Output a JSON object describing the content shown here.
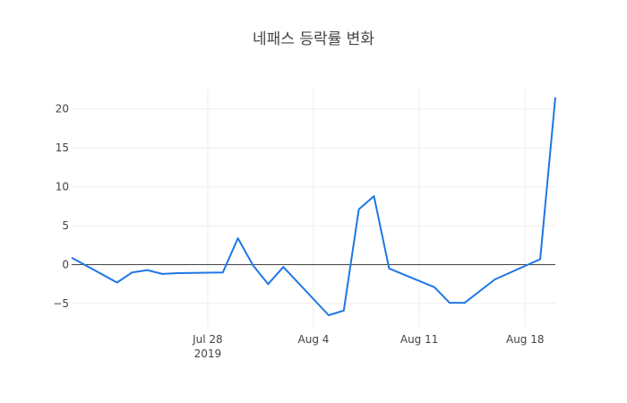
{
  "chart_data": {
    "type": "line",
    "title": "네패스 등락률 변화",
    "xlabel": "",
    "ylabel": "",
    "series_color": "#1f77e4",
    "grid": true,
    "x": [
      "2019-07-19",
      "2019-07-22",
      "2019-07-23",
      "2019-07-24",
      "2019-07-25",
      "2019-07-26",
      "2019-07-29",
      "2019-07-30",
      "2019-07-31",
      "2019-08-01",
      "2019-08-02",
      "2019-08-05",
      "2019-08-06",
      "2019-08-07",
      "2019-08-08",
      "2019-08-09",
      "2019-08-12",
      "2019-08-13",
      "2019-08-14",
      "2019-08-16",
      "2019-08-19",
      "2019-08-20"
    ],
    "values": [
      0.9,
      -2.3,
      -1.0,
      -0.7,
      -1.2,
      -1.1,
      -1.0,
      3.4,
      -0.1,
      -2.5,
      -0.3,
      -6.5,
      -5.9,
      7.1,
      8.8,
      -0.5,
      -2.9,
      -4.9,
      -4.9,
      -1.9,
      0.7,
      21.5
    ],
    "xlim": [
      "2019-07-19",
      "2019-08-20"
    ],
    "ylim": [
      -8,
      22.5
    ],
    "yticks": [
      -5,
      0,
      5,
      10,
      15,
      20
    ],
    "ytick_labels": [
      "−5",
      "0",
      "5",
      "10",
      "15",
      "20"
    ],
    "xticks": [
      {
        "date": "2019-07-28",
        "label": "Jul 28",
        "sublabel": "2019"
      },
      {
        "date": "2019-08-04",
        "label": "Aug 4",
        "sublabel": ""
      },
      {
        "date": "2019-08-11",
        "label": "Aug 11",
        "sublabel": ""
      },
      {
        "date": "2019-08-18",
        "label": "Aug 18",
        "sublabel": ""
      }
    ]
  }
}
